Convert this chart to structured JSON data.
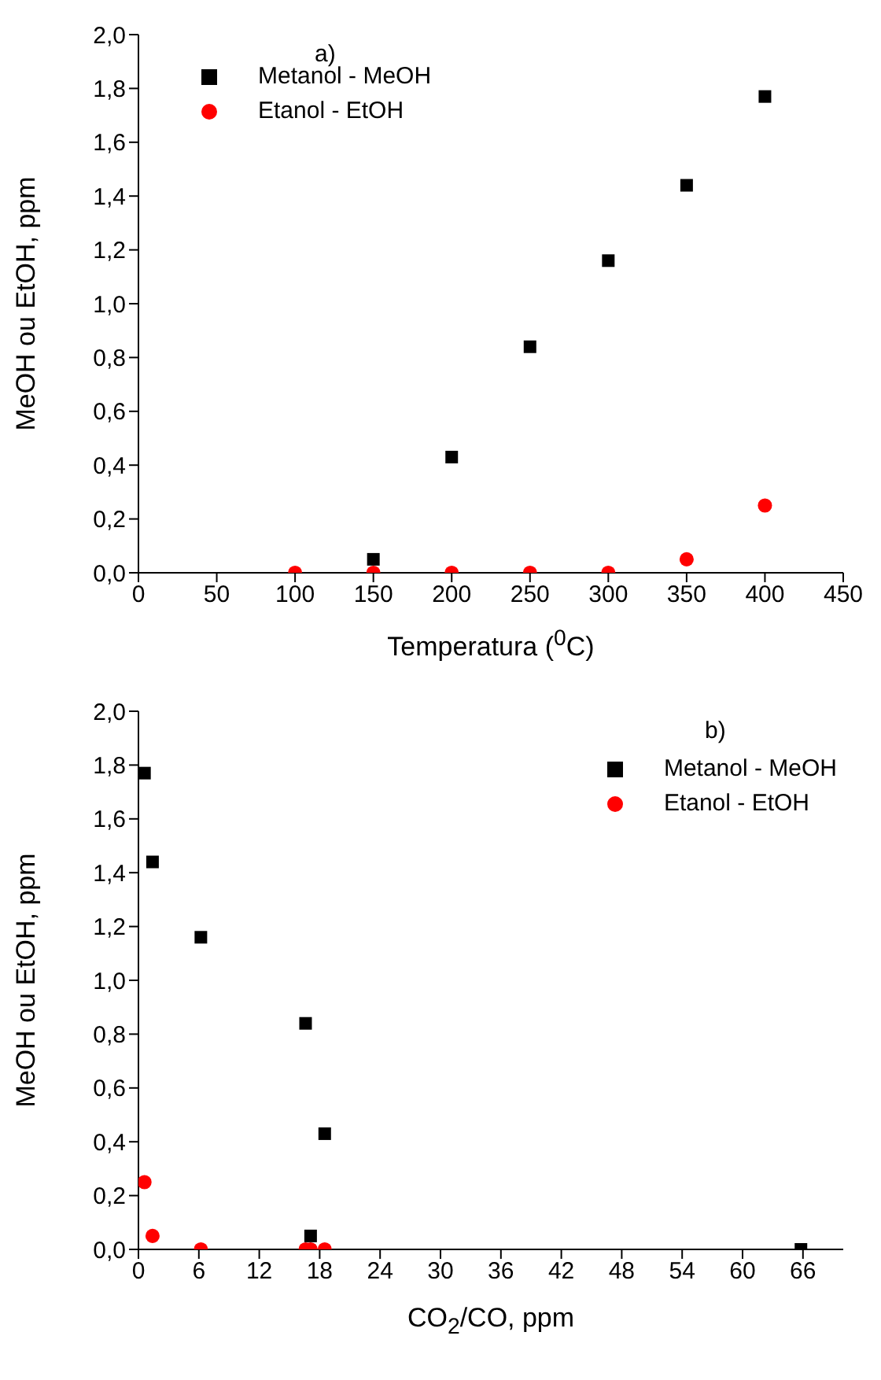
{
  "chart_data": [
    {
      "type": "scatter",
      "xlabel": "Temperatura ($^{0}$C)",
      "ylabel": "MeOH ou EtOH, ppm",
      "annotations": [
        "a)"
      ],
      "legend": "top left",
      "grid": false,
      "xlim": [
        0,
        450
      ],
      "xticks": [
        0,
        50,
        100,
        150,
        200,
        250,
        300,
        350,
        400,
        450
      ],
      "ylim": [
        0,
        2
      ],
      "yticks": [
        {
          "value": 0,
          "label": "0,0"
        },
        {
          "value": 0.2,
          "label": "0,2"
        },
        {
          "value": 0.4,
          "label": "0,4"
        },
        {
          "value": 0.6,
          "label": "0,6"
        },
        {
          "value": 0.8,
          "label": "0,8"
        },
        {
          "value": 1,
          "label": "1,0"
        },
        {
          "value": 1.2,
          "label": "1,2"
        },
        {
          "value": 1.4,
          "label": "1,4"
        },
        {
          "value": 1.6,
          "label": "1,6"
        },
        {
          "value": 1.8,
          "label": "1,8"
        },
        {
          "value": 2,
          "label": "2,0"
        }
      ],
      "series": [
        {
          "name": "Metanol - MeOH",
          "color": "#000000",
          "marker": "square",
          "x": [
            150,
            200,
            250,
            300,
            350,
            400
          ],
          "values": [
            0.05,
            0.43,
            0.84,
            1.16,
            1.44,
            1.77
          ]
        },
        {
          "name": "Etanol - EtOH",
          "color": "#ff0000",
          "marker": "circle",
          "x": [
            100,
            150,
            200,
            250,
            300,
            350,
            400
          ],
          "values": [
            0,
            0,
            0,
            0,
            0,
            0.05,
            0.25
          ]
        }
      ]
    },
    {
      "type": "scatter",
      "xlabel": "CO$_{2}$/CO, ppm",
      "ylabel": "MeOH ou EtOH, ppm",
      "annotations": [
        "b)"
      ],
      "legend": "top right",
      "grid": false,
      "xlim": [
        0,
        70
      ],
      "xticks": [
        0,
        6,
        12,
        18,
        24,
        30,
        36,
        42,
        48,
        54,
        60,
        66
      ],
      "ylim": [
        0,
        2
      ],
      "yticks": [
        {
          "value": 0,
          "label": "0,0"
        },
        {
          "value": 0.2,
          "label": "0,2"
        },
        {
          "value": 0.4,
          "label": "0,4"
        },
        {
          "value": 0.6,
          "label": "0,6"
        },
        {
          "value": 0.8,
          "label": "0,8"
        },
        {
          "value": 1,
          "label": "1,0"
        },
        {
          "value": 1.2,
          "label": "1,2"
        },
        {
          "value": 1.4,
          "label": "1,4"
        },
        {
          "value": 1.6,
          "label": "1,6"
        },
        {
          "value": 1.8,
          "label": "1,8"
        },
        {
          "value": 2,
          "label": "2,0"
        }
      ],
      "series": [
        {
          "name": "Metanol - MeOH",
          "color": "#000000",
          "marker": "square",
          "x": [
            0.6,
            1.4,
            6.2,
            16.6,
            18.5,
            17.1,
            65.8
          ],
          "values": [
            1.77,
            1.44,
            1.16,
            0.84,
            0.43,
            0.05,
            0
          ]
        },
        {
          "name": "Etanol - EtOH",
          "color": "#ff0000",
          "marker": "circle",
          "x": [
            0.6,
            1.4,
            6.2,
            16.6,
            18.5,
            17.1
          ],
          "values": [
            0.25,
            0.05,
            0,
            0,
            0,
            0
          ]
        }
      ]
    }
  ]
}
